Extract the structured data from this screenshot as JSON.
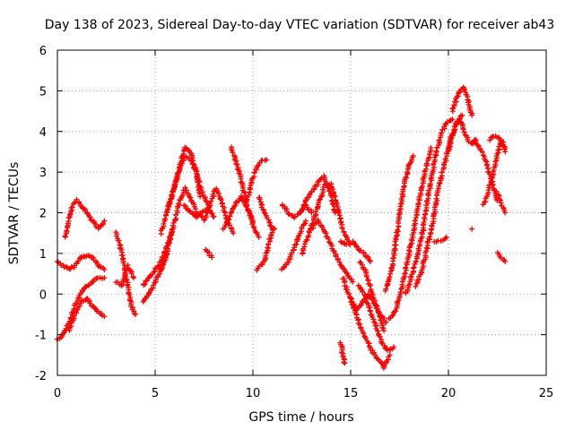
{
  "chart_data": {
    "type": "scatter",
    "title": "Day 138 of 2023, Sidereal Day-to-day VTEC variation (SDTVAR) for receiver ab43",
    "xlabel": "GPS time / hours",
    "ylabel": "SDTVAR / TECUs",
    "xlim": [
      0,
      25
    ],
    "ylim": [
      -2,
      6
    ],
    "xticks": [
      "0",
      "5",
      "10",
      "15",
      "20",
      "25"
    ],
    "yticks": [
      "-2",
      "-1",
      "0",
      "1",
      "2",
      "3",
      "4",
      "5",
      "6"
    ],
    "grid": true,
    "marker": "plus",
    "color": "#ff0000",
    "series": [
      {
        "name": "s01",
        "x": [
          0.0,
          0.3,
          0.6,
          0.9,
          1.2,
          1.5,
          1.8,
          2.1,
          2.4
        ],
        "y": [
          0.8,
          0.7,
          0.6,
          0.7,
          0.9,
          0.95,
          0.9,
          0.7,
          0.6
        ]
      },
      {
        "name": "s02",
        "x": [
          0.0,
          0.3,
          0.6,
          0.9,
          1.2,
          1.5,
          1.8,
          2.1,
          2.4
        ],
        "y": [
          -1.1,
          -1.0,
          -0.7,
          -0.3,
          0.0,
          0.2,
          0.3,
          0.4,
          0.4
        ]
      },
      {
        "name": "s03",
        "x": [
          0.4,
          0.6,
          0.8,
          1.0,
          1.2,
          1.5,
          1.8,
          2.1,
          2.4
        ],
        "y": [
          1.4,
          1.9,
          2.2,
          2.3,
          2.2,
          2.0,
          1.8,
          1.6,
          1.8
        ]
      },
      {
        "name": "s04",
        "x": [
          0.6,
          0.9,
          1.2,
          1.5,
          1.8,
          2.1,
          2.4
        ],
        "y": [
          -0.9,
          -0.5,
          -0.2,
          -0.1,
          -0.3,
          -0.45,
          -0.55
        ]
      },
      {
        "name": "s05",
        "x": [
          3.0,
          3.2,
          3.4,
          3.6,
          3.8,
          4.0
        ],
        "y": [
          1.5,
          1.2,
          0.8,
          0.2,
          -0.3,
          -0.5
        ]
      },
      {
        "name": "s06",
        "x": [
          3.0,
          3.3,
          3.6,
          3.9
        ],
        "y": [
          0.3,
          0.2,
          0.7,
          0.4
        ]
      },
      {
        "name": "s07",
        "x": [
          4.4,
          4.7,
          5.0,
          5.3,
          5.6,
          5.9
        ],
        "y": [
          0.2,
          0.4,
          0.6,
          0.8,
          1.2,
          1.6
        ]
      },
      {
        "name": "s08",
        "x": [
          4.4,
          4.7,
          5.0,
          5.3,
          5.6
        ],
        "y": [
          -0.2,
          0.0,
          0.3,
          0.6,
          1.0
        ]
      },
      {
        "name": "s09",
        "x": [
          5.3,
          5.6,
          5.9,
          6.2,
          6.5,
          6.8,
          7.1,
          7.3
        ],
        "y": [
          1.5,
          2.0,
          2.5,
          3.0,
          3.6,
          3.5,
          3.0,
          2.4
        ]
      },
      {
        "name": "s10",
        "x": [
          5.3,
          5.6,
          5.9,
          6.2,
          6.5,
          6.8,
          7.1,
          7.4
        ],
        "y": [
          0.6,
          1.0,
          1.6,
          2.2,
          2.6,
          2.4,
          2.0,
          1.9
        ]
      },
      {
        "name": "s11",
        "x": [
          5.6,
          5.9,
          6.2,
          6.5,
          6.8,
          7.1,
          7.4,
          7.7
        ],
        "y": [
          2.0,
          2.5,
          3.0,
          3.4,
          3.3,
          3.0,
          2.5,
          2.2
        ]
      },
      {
        "name": "s12",
        "x": [
          6.5,
          6.8,
          7.1,
          7.4,
          7.7,
          8.0
        ],
        "y": [
          2.2,
          2.0,
          1.9,
          2.0,
          2.1,
          1.9
        ]
      },
      {
        "name": "s13",
        "x": [
          7.5,
          7.8,
          8.1,
          8.4,
          8.7,
          9.0
        ],
        "y": [
          1.8,
          2.2,
          2.6,
          2.3,
          1.8,
          1.5
        ]
      },
      {
        "name": "s14",
        "x": [
          7.6,
          7.9
        ],
        "y": [
          1.1,
          0.9
        ]
      },
      {
        "name": "s15",
        "x": [
          8.9,
          9.1,
          9.3,
          9.5,
          9.7,
          10.0,
          10.3
        ],
        "y": [
          3.6,
          3.3,
          3.0,
          2.6,
          2.2,
          1.7,
          1.4
        ]
      },
      {
        "name": "s16",
        "x": [
          8.5,
          8.8,
          9.1,
          9.4,
          9.7,
          10.0
        ],
        "y": [
          1.6,
          1.9,
          2.2,
          2.4,
          2.1,
          1.8
        ]
      },
      {
        "name": "s17",
        "x": [
          9.7,
          9.9,
          10.1,
          10.3,
          10.5,
          10.7
        ],
        "y": [
          2.3,
          2.7,
          3.0,
          3.2,
          3.3,
          3.3
        ]
      },
      {
        "name": "s18",
        "x": [
          10.2,
          10.4,
          10.6,
          10.8,
          11.0
        ],
        "y": [
          0.6,
          0.7,
          0.8,
          1.2,
          1.6
        ]
      },
      {
        "name": "s19",
        "x": [
          10.3,
          10.5,
          10.7,
          10.9,
          11.1
        ],
        "y": [
          2.4,
          2.1,
          1.9,
          1.7,
          1.6
        ]
      },
      {
        "name": "s20",
        "x": [
          11.5,
          11.8,
          12.1,
          12.4,
          12.7
        ],
        "y": [
          0.6,
          0.8,
          1.1,
          1.5,
          1.8
        ]
      },
      {
        "name": "s21",
        "x": [
          11.5,
          11.8,
          12.1,
          12.4,
          12.7,
          13.0
        ],
        "y": [
          2.2,
          2.0,
          1.9,
          2.0,
          2.2,
          2.0
        ]
      },
      {
        "name": "s22",
        "x": [
          12.5,
          12.8,
          13.1,
          13.4,
          13.7,
          14.0,
          14.3,
          14.6,
          14.9
        ],
        "y": [
          1.0,
          1.4,
          1.8,
          2.3,
          2.7,
          2.7,
          2.2,
          1.6,
          1.3
        ]
      },
      {
        "name": "s23",
        "x": [
          12.4,
          12.7,
          13.0,
          13.3,
          13.6,
          13.9,
          14.2
        ],
        "y": [
          2.0,
          2.3,
          2.5,
          2.7,
          2.9,
          2.6,
          2.0
        ]
      },
      {
        "name": "s24",
        "x": [
          13.0,
          13.3,
          13.6,
          13.9,
          14.2,
          14.5,
          14.8,
          15.1
        ],
        "y": [
          1.6,
          1.8,
          1.6,
          1.3,
          1.0,
          0.7,
          0.5,
          0.3
        ]
      },
      {
        "name": "s25",
        "x": [
          14.5,
          14.8,
          15.1,
          15.4,
          15.7,
          16.0
        ],
        "y": [
          1.3,
          1.2,
          1.3,
          1.1,
          1.0,
          0.8
        ]
      },
      {
        "name": "s26",
        "x": [
          14.6,
          14.9,
          15.2,
          15.5,
          15.8,
          16.1,
          16.4,
          16.7,
          17.0
        ],
        "y": [
          0.4,
          0.0,
          -0.4,
          -0.8,
          -1.1,
          -1.4,
          -1.6,
          -1.8,
          -1.5
        ]
      },
      {
        "name": "s27",
        "x": [
          15.0,
          15.3,
          15.6,
          15.9,
          16.2,
          16.5,
          16.8
        ],
        "y": [
          -0.1,
          -0.4,
          -0.2,
          0.0,
          -0.2,
          -0.5,
          -0.7
        ]
      },
      {
        "name": "s28",
        "x": [
          15.4,
          15.7,
          16.0,
          16.3,
          16.6,
          16.9,
          17.2
        ],
        "y": [
          0.2,
          0.0,
          -0.4,
          -0.8,
          -1.2,
          -1.4,
          -1.3
        ]
      },
      {
        "name": "s29",
        "x": [
          15.5,
          15.8,
          16.1,
          16.4,
          16.7
        ],
        "y": [
          0.8,
          0.5,
          0.0,
          -0.4,
          -0.9
        ]
      },
      {
        "name": "s30",
        "x": [
          14.5,
          14.6,
          14.7
        ],
        "y": [
          -1.2,
          -1.5,
          -1.7
        ]
      },
      {
        "name": "s31",
        "x": [
          16.8,
          17.0,
          17.2,
          17.4,
          17.6,
          17.8,
          18.0,
          18.2
        ],
        "y": [
          0.1,
          0.4,
          0.9,
          1.6,
          2.3,
          2.8,
          3.2,
          3.4
        ]
      },
      {
        "name": "s32",
        "x": [
          17.0,
          17.3,
          17.6,
          17.9,
          18.2,
          18.5,
          18.8,
          19.1
        ],
        "y": [
          -0.6,
          -0.4,
          0.1,
          0.8,
          1.5,
          2.3,
          3.0,
          3.6
        ]
      },
      {
        "name": "s33",
        "x": [
          17.8,
          18.1,
          18.4,
          18.7,
          19.0,
          19.3,
          19.6,
          19.9,
          20.2
        ],
        "y": [
          0.0,
          0.4,
          0.9,
          1.6,
          2.5,
          3.3,
          3.9,
          4.2,
          4.3
        ]
      },
      {
        "name": "s34",
        "x": [
          18.3,
          18.6,
          18.9,
          19.2,
          19.5,
          19.8,
          20.1,
          20.4,
          20.7
        ],
        "y": [
          0.2,
          0.5,
          1.1,
          1.8,
          2.6,
          3.2,
          3.8,
          4.2,
          4.4
        ]
      },
      {
        "name": "s35",
        "x": [
          19.3,
          19.5,
          19.7,
          19.9
        ],
        "y": [
          1.3,
          1.3,
          1.3,
          1.4
        ]
      },
      {
        "name": "s36",
        "x": [
          20.2,
          20.4,
          20.6,
          20.8,
          21.0,
          21.2
        ],
        "y": [
          4.5,
          4.8,
          5.0,
          5.1,
          4.8,
          4.4
        ]
      },
      {
        "name": "s37",
        "x": [
          20.0,
          20.2,
          20.4,
          20.6,
          20.8,
          21.0,
          21.2,
          21.4
        ],
        "y": [
          3.5,
          3.9,
          4.2,
          4.3,
          4.0,
          3.8,
          3.7,
          3.8
        ]
      },
      {
        "name": "s38",
        "x": [
          21.3,
          21.6,
          21.9,
          22.2,
          22.5
        ],
        "y": [
          3.8,
          3.6,
          3.3,
          2.8,
          2.3
        ]
      },
      {
        "name": "s39",
        "x": [
          21.8,
          22.1,
          22.4,
          22.7,
          22.9
        ],
        "y": [
          2.2,
          2.6,
          3.2,
          3.8,
          3.6
        ]
      },
      {
        "name": "s40",
        "x": [
          22.1,
          22.4,
          22.7,
          22.9
        ],
        "y": [
          3.8,
          3.9,
          3.8,
          3.5
        ]
      },
      {
        "name": "s41",
        "x": [
          22.5,
          22.7,
          22.9
        ],
        "y": [
          2.5,
          2.2,
          2.0
        ]
      },
      {
        "name": "s42",
        "x": [
          22.5,
          22.7,
          22.9
        ],
        "y": [
          1.0,
          0.9,
          0.8
        ]
      },
      {
        "name": "s43",
        "x": [
          21.2
        ],
        "y": [
          1.6
        ]
      }
    ]
  }
}
